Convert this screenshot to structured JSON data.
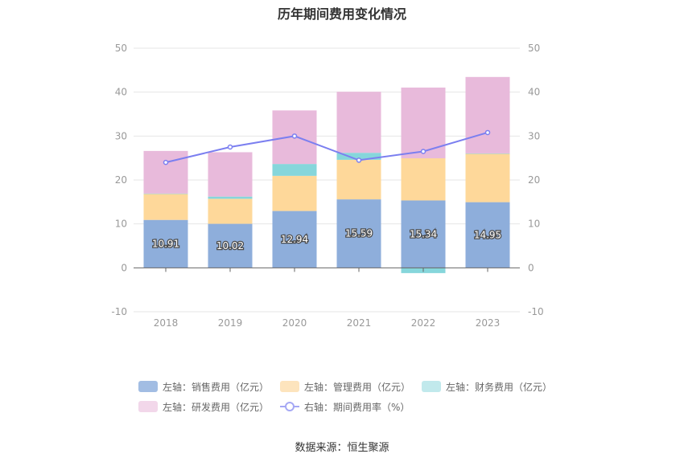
{
  "chart_data": {
    "type": "bar",
    "title": "历年期间费用变化情况",
    "categories": [
      "2018",
      "2019",
      "2020",
      "2021",
      "2022",
      "2023"
    ],
    "left_axis": {
      "ylim": [
        -10,
        50
      ],
      "ticks": [
        "-10",
        "0",
        "10",
        "20",
        "30",
        "40",
        "50"
      ]
    },
    "right_axis": {
      "ylim": [
        -10,
        50
      ],
      "ticks": [
        "-10",
        "0",
        "10",
        "20",
        "30",
        "40",
        "50"
      ]
    },
    "series": [
      {
        "name": "左轴：销售费用（亿元）",
        "type": "bar",
        "stack": true,
        "color": "#8eaedb",
        "values": [
          10.91,
          10.02,
          12.94,
          15.59,
          15.34,
          14.95
        ],
        "show_labels": true
      },
      {
        "name": "左轴：管理费用（亿元）",
        "type": "bar",
        "stack": true,
        "color": "#fed89a",
        "values": [
          5.9,
          5.7,
          8.0,
          9.0,
          9.6,
          11.0
        ]
      },
      {
        "name": "左轴：财务费用（亿元）",
        "type": "bar",
        "stack": true,
        "color": "#86d6db",
        "values": [
          0.1,
          0.5,
          2.7,
          1.6,
          -1.2,
          0.1
        ]
      },
      {
        "name": "左轴：研发费用（亿元）",
        "type": "bar",
        "stack": true,
        "color": "#e8badb",
        "values": [
          9.7,
          10.1,
          12.2,
          13.9,
          16.1,
          17.4
        ]
      },
      {
        "name": "右轴：期间费用率（%）",
        "type": "line",
        "axis": "right",
        "color": "#7b7ff0",
        "values": [
          24.0,
          27.5,
          30.0,
          24.5,
          26.5,
          30.8
        ]
      }
    ],
    "grid": "horizontal",
    "legend_position": "bottom"
  },
  "legend": {
    "row1": [
      "左轴：销售费用（亿元）",
      "左轴：管理费用（亿元）",
      "左轴：财务费用（亿元）"
    ],
    "row2": [
      "左轴：研发费用（亿元）",
      "右轴：期间费用率（%）"
    ],
    "colors": [
      "#a2bde3",
      "#fde4bd",
      "#c1e9ec",
      "#f2d7ea",
      "#a5a8f4"
    ]
  },
  "source": "数据来源：恒生聚源"
}
